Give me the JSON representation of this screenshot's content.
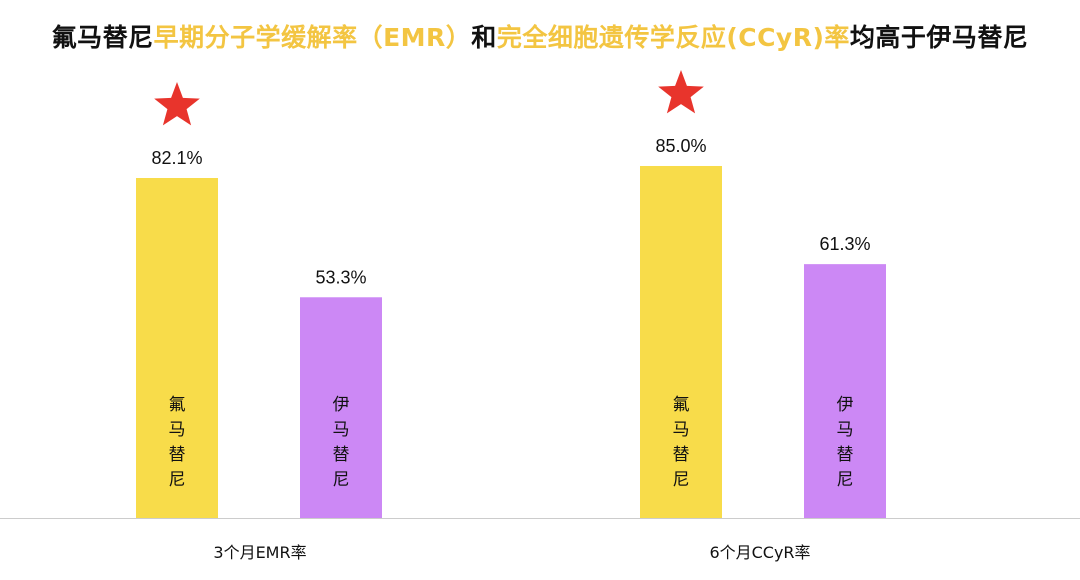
{
  "title": {
    "segments": [
      {
        "text": "氟马替尼",
        "color": "#111111"
      },
      {
        "text": "早期分子学缓解率（EMR）",
        "color": "#f3c542"
      },
      {
        "text": "和",
        "color": "#111111"
      },
      {
        "text": "完全细胞遗传学反应(CCyR)率",
        "color": "#f3c542"
      },
      {
        "text": "均高于伊马替尼",
        "color": "#111111"
      }
    ]
  },
  "colors": {
    "flumatinib": "#f8dc4a",
    "imatinib": "#cc88f5",
    "star": "#e8342c",
    "baseline": "#cccccc"
  },
  "chart_data": {
    "type": "bar",
    "categories": [
      "3个月EMR率",
      "6个月CCyR率"
    ],
    "series": [
      {
        "name": "氟马替尼",
        "values": [
          82.1,
          85.0
        ],
        "labels": [
          "82.1%",
          "85.0%"
        ],
        "color_key": "flumatinib",
        "starred": [
          true,
          true
        ]
      },
      {
        "name": "伊马替尼",
        "values": [
          53.3,
          61.3
        ],
        "labels": [
          "53.3%",
          "61.3%"
        ],
        "color_key": "imatinib",
        "starred": [
          false,
          false
        ]
      }
    ],
    "ylim": [
      0,
      100
    ],
    "grid": false,
    "legend": "none"
  }
}
